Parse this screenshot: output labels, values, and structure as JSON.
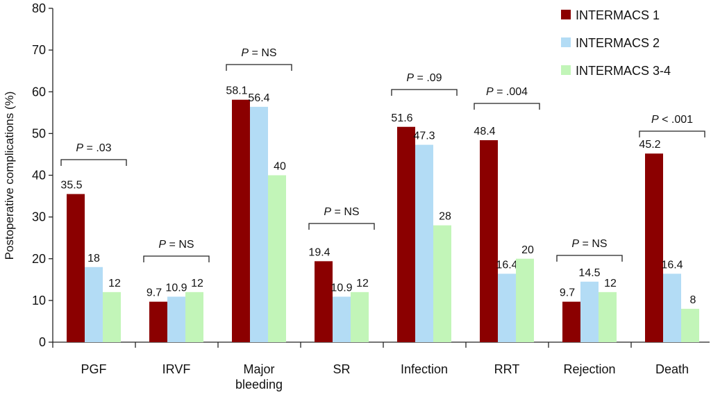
{
  "chart_data": {
    "type": "bar",
    "title": "",
    "xlabel": "",
    "ylabel": "Postoperative complications (%)",
    "ylim": [
      0,
      80
    ],
    "yticks": [
      0,
      10,
      20,
      30,
      40,
      50,
      60,
      70,
      80
    ],
    "grid": false,
    "legend_position": "top-right",
    "categories": [
      "PGF",
      "IRVF",
      "Major bleeding",
      "SR",
      "Infection",
      "RRT",
      "Rejection",
      "Death"
    ],
    "category_lines": [
      [
        "PGF"
      ],
      [
        "IRVF"
      ],
      [
        "Major",
        "bleeding"
      ],
      [
        "SR"
      ],
      [
        "Infection"
      ],
      [
        "RRT"
      ],
      [
        "Rejection"
      ],
      [
        "Death"
      ]
    ],
    "series": [
      {
        "name": "INTERMACS 1",
        "color": "#8b0000",
        "values": [
          35.5,
          9.7,
          58.1,
          19.4,
          51.6,
          48.4,
          9.7,
          45.2
        ],
        "labels": [
          "35.5",
          "9.7",
          "58.1",
          "19.4",
          "51.6",
          "48.4",
          "9.7",
          "45.2"
        ]
      },
      {
        "name": "INTERMACS 2",
        "color": "#b3dcf5",
        "values": [
          18,
          10.9,
          56.4,
          10.9,
          47.3,
          16.4,
          14.5,
          16.4
        ],
        "labels": [
          "18",
          "10.9",
          "56.4",
          "10.9",
          "47.3",
          "16.4",
          "14.5",
          "16.4"
        ]
      },
      {
        "name": "INTERMACS 3-4",
        "color": "#c2f5b8",
        "values": [
          12,
          12,
          40,
          12,
          28,
          20,
          12,
          8
        ],
        "labels": [
          "12",
          "12",
          "40",
          "12",
          "28",
          "20",
          "12",
          "8"
        ]
      }
    ],
    "p_values": [
      {
        "category": "PGF",
        "text": "= .03"
      },
      {
        "category": "IRVF",
        "text": "= NS"
      },
      {
        "category": "Major bleeding",
        "text": "= NS"
      },
      {
        "category": "SR",
        "text": "= NS"
      },
      {
        "category": "Infection",
        "text": "= .09"
      },
      {
        "category": "RRT",
        "text": "= .004"
      },
      {
        "category": "Rejection",
        "text": "= NS"
      },
      {
        "category": "Death",
        "text": "< .001"
      }
    ],
    "p_symbol": "P"
  }
}
